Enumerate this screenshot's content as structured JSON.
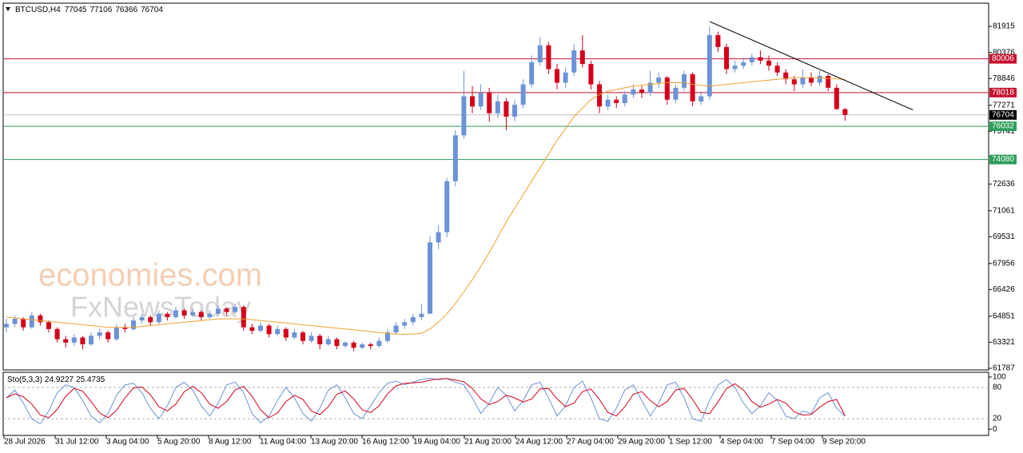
{
  "chart_data": {
    "type": "candlestick",
    "symbol": "BTCUSD,H4",
    "up_color": "#6b93d6",
    "down_color": "#d4001a",
    "candles": [
      [
        64200,
        64700,
        63900,
        64400
      ],
      [
        64400,
        64900,
        64200,
        64700
      ],
      [
        64700,
        64800,
        64000,
        64200
      ],
      [
        64200,
        65100,
        64100,
        64900
      ],
      [
        64900,
        65000,
        64300,
        64500
      ],
      [
        64500,
        64600,
        63900,
        64100
      ],
      [
        64100,
        64200,
        63300,
        63500
      ],
      [
        63500,
        63700,
        63000,
        63300
      ],
      [
        63300,
        63800,
        63100,
        63600
      ],
      [
        63600,
        63700,
        62900,
        63200
      ],
      [
        63200,
        63900,
        63100,
        63700
      ],
      [
        63700,
        64100,
        63500,
        63900
      ],
      [
        63900,
        64000,
        63300,
        63500
      ],
      [
        63500,
        64400,
        63400,
        64200
      ],
      [
        64200,
        64400,
        63900,
        64100
      ],
      [
        64100,
        64800,
        64000,
        64600
      ],
      [
        64600,
        65000,
        64400,
        64800
      ],
      [
        64800,
        64900,
        64300,
        64500
      ],
      [
        64500,
        65200,
        64400,
        65000
      ],
      [
        65000,
        65100,
        64600,
        64800
      ],
      [
        64800,
        65400,
        64700,
        65200
      ],
      [
        65200,
        65300,
        64700,
        64900
      ],
      [
        64900,
        65300,
        64800,
        65100
      ],
      [
        65100,
        65200,
        64600,
        64800
      ],
      [
        64800,
        65200,
        64700,
        65000
      ],
      [
        65000,
        65500,
        64900,
        65300
      ],
      [
        65300,
        65400,
        64900,
        65100
      ],
      [
        65100,
        65600,
        65000,
        65400
      ],
      [
        65400,
        65500,
        64000,
        64200
      ],
      [
        64200,
        64400,
        63800,
        64000
      ],
      [
        64000,
        64500,
        63900,
        64300
      ],
      [
        64300,
        64400,
        63600,
        63800
      ],
      [
        63800,
        64300,
        63700,
        64100
      ],
      [
        64100,
        64200,
        63400,
        63600
      ],
      [
        63600,
        64100,
        63500,
        63900
      ],
      [
        63900,
        64000,
        63200,
        63400
      ],
      [
        63400,
        63900,
        63300,
        63700
      ],
      [
        63700,
        63800,
        62900,
        63200
      ],
      [
        63200,
        63700,
        63100,
        63500
      ],
      [
        63500,
        63600,
        62900,
        63100
      ],
      [
        63100,
        63400,
        63000,
        63300
      ],
      [
        63300,
        63400,
        62800,
        63000
      ],
      [
        63000,
        63300,
        62900,
        63200
      ],
      [
        63200,
        63300,
        62900,
        63100
      ],
      [
        63100,
        63600,
        63000,
        63400
      ],
      [
        63400,
        64100,
        63300,
        63900
      ],
      [
        63900,
        64500,
        63800,
        64300
      ],
      [
        64300,
        64700,
        64100,
        64500
      ],
      [
        64500,
        65000,
        64300,
        64800
      ],
      [
        64800,
        65600,
        64600,
        65000
      ],
      [
        65000,
        69600,
        65000,
        69200
      ],
      [
        69200,
        70200,
        68800,
        69800
      ],
      [
        69800,
        73000,
        69500,
        72800
      ],
      [
        72800,
        75800,
        72500,
        75500
      ],
      [
        75500,
        79300,
        75300,
        77800
      ],
      [
        77800,
        78400,
        76800,
        77200
      ],
      [
        77200,
        78500,
        77000,
        78000
      ],
      [
        78000,
        78300,
        76300,
        76800
      ],
      [
        76800,
        77900,
        76500,
        77500
      ],
      [
        77500,
        77700,
        75800,
        76600
      ],
      [
        76600,
        77600,
        76300,
        77300
      ],
      [
        77300,
        78800,
        77100,
        78500
      ],
      [
        78500,
        80200,
        78300,
        79800
      ],
      [
        79800,
        81300,
        79600,
        80800
      ],
      [
        80800,
        81000,
        79100,
        79400
      ],
      [
        79400,
        79700,
        78200,
        78600
      ],
      [
        78600,
        79500,
        78300,
        79200
      ],
      [
        79200,
        80900,
        79000,
        80500
      ],
      [
        80500,
        81400,
        79500,
        79700
      ],
      [
        79700,
        79900,
        78200,
        78500
      ],
      [
        78500,
        78700,
        76800,
        77200
      ],
      [
        77200,
        77900,
        77000,
        77600
      ],
      [
        77600,
        77800,
        77100,
        77400
      ],
      [
        77400,
        78100,
        77200,
        77900
      ],
      [
        77900,
        78500,
        77700,
        78200
      ],
      [
        78200,
        78400,
        77700,
        78000
      ],
      [
        78000,
        79300,
        77800,
        78600
      ],
      [
        78600,
        79200,
        78300,
        78900
      ],
      [
        78900,
        79000,
        77300,
        77600
      ],
      [
        77600,
        78500,
        77400,
        78300
      ],
      [
        78300,
        79300,
        78100,
        79100
      ],
      [
        79100,
        79200,
        77200,
        77500
      ],
      [
        77500,
        78100,
        77300,
        77800
      ],
      [
        77800,
        81900,
        77600,
        81400
      ],
      [
        81400,
        81600,
        80400,
        80700
      ],
      [
        80700,
        80900,
        79100,
        79400
      ],
      [
        79400,
        79900,
        79200,
        79600
      ],
      [
        79600,
        80100,
        79400,
        79800
      ],
      [
        79800,
        80300,
        79600,
        80100
      ],
      [
        80100,
        80500,
        79700,
        79900
      ],
      [
        79900,
        80200,
        79300,
        79600
      ],
      [
        79600,
        79800,
        79000,
        79200
      ],
      [
        79200,
        79400,
        78500,
        78800
      ],
      [
        78800,
        79000,
        78100,
        78500
      ],
      [
        78500,
        79400,
        78300,
        78900
      ],
      [
        78900,
        79200,
        78400,
        78600
      ],
      [
        78600,
        79300,
        78400,
        79000
      ],
      [
        79000,
        79100,
        78100,
        78300
      ],
      [
        78300,
        78500,
        77000,
        77045
      ],
      [
        77045,
        77106,
        76366,
        76704
      ]
    ],
    "ma": {
      "color": "#f0a030",
      "values": [
        64800,
        64750,
        64700,
        64650,
        64600,
        64550,
        64500,
        64450,
        64400,
        64350,
        64300,
        64250,
        64200,
        64200,
        64200,
        64200,
        64250,
        64300,
        64350,
        64400,
        64450,
        64500,
        64550,
        64600,
        64650,
        64700,
        64700,
        64700,
        64700,
        64650,
        64600,
        64550,
        64500,
        64450,
        64400,
        64350,
        64300,
        64250,
        64200,
        64150,
        64100,
        64050,
        64000,
        63950,
        63900,
        63850,
        63800,
        63800,
        63800,
        63850,
        64100,
        64500,
        65000,
        65600,
        66300,
        67000,
        67800,
        68600,
        69500,
        70400,
        71200,
        72000,
        72800,
        73600,
        74400,
        75200,
        75900,
        76600,
        77100,
        77600,
        77900,
        78100,
        78200,
        78300,
        78400,
        78450,
        78500,
        78550,
        78600,
        78600,
        78600,
        78500,
        78450,
        78400,
        78450,
        78500,
        78550,
        78600,
        78650,
        78700,
        78750,
        78800,
        78850,
        78900,
        78900,
        78900,
        78880,
        78850,
        78820,
        78800
      ]
    },
    "levels": [
      {
        "value": 80006,
        "color": "#c8102e"
      },
      {
        "value": 78018,
        "color": "#c8102e"
      },
      {
        "value": 76032,
        "color": "#2e9e5b"
      },
      {
        "value": 74080,
        "color": "#2e9e5b"
      }
    ],
    "trendline": {
      "x": [
        83,
        107
      ],
      "y": [
        82200,
        77000
      ]
    },
    "ylim": [
      61693,
      83279
    ],
    "yticks": [
      81915,
      80376,
      78846,
      77271,
      75741,
      72636,
      71061,
      69531,
      67956,
      66426,
      64851,
      63321,
      61787
    ],
    "xlabels": [
      "28 Jul 2026",
      "31 Jul 12:00",
      "3 Aug 04:00",
      "5 Aug 20:00",
      "8 Aug 12:00",
      "11 Aug 04:00",
      "13 Aug 20:00",
      "16 Aug 12:00",
      "19 Aug 04:00",
      "21 Aug 20:00",
      "24 Aug 12:00",
      "27 Aug 04:00",
      "29 Aug 20:00",
      "1 Sep 12:00",
      "4 Sep 04:00",
      "7 Sep 04:00",
      "9 Sep 20:00"
    ],
    "watermark": [
      "economies.com",
      "FxNewsToday"
    ],
    "stochastic": {
      "label": "Sto(5,3,3)",
      "ylim": [
        -12,
        109
      ],
      "yticks": [
        0,
        20,
        80,
        100
      ],
      "main": {
        "color": "#6b93d6",
        "values": [
          60,
          75,
          50,
          20,
          10,
          35,
          70,
          85,
          80,
          55,
          25,
          12,
          30,
          65,
          85,
          88,
          70,
          40,
          20,
          45,
          80,
          90,
          75,
          45,
          25,
          50,
          85,
          90,
          70,
          30,
          12,
          25,
          55,
          80,
          60,
          30,
          15,
          40,
          75,
          85,
          60,
          30,
          20,
          45,
          70,
          88,
          92,
          85,
          90,
          95,
          98,
          95,
          97,
          90,
          85,
          60,
          30,
          50,
          80,
          65,
          35,
          55,
          85,
          90,
          60,
          25,
          45,
          80,
          92,
          60,
          20,
          15,
          40,
          75,
          85,
          55,
          25,
          50,
          85,
          90,
          60,
          20,
          15,
          55,
          85,
          95,
          80,
          50,
          30,
          45,
          70,
          55,
          25,
          20,
          35,
          30,
          60,
          70,
          40,
          24.9227
        ]
      },
      "signal": {
        "color": "#d4001a",
        "values": [
          60,
          68,
          62,
          48,
          27,
          22,
          38,
          63,
          78,
          73,
          53,
          31,
          22,
          36,
          60,
          79,
          81,
          66,
          43,
          35,
          48,
          72,
          82,
          70,
          48,
          40,
          53,
          75,
          82,
          63,
          37,
          22,
          31,
          53,
          65,
          57,
          35,
          28,
          43,
          67,
          73,
          58,
          37,
          32,
          45,
          68,
          83,
          88,
          89,
          90,
          94,
          96,
          97,
          94,
          91,
          78,
          58,
          47,
          53,
          65,
          60,
          52,
          58,
          77,
          78,
          58,
          43,
          50,
          72,
          77,
          57,
          32,
          25,
          43,
          67,
          72,
          55,
          43,
          53,
          75,
          78,
          57,
          32,
          30,
          52,
          78,
          87,
          75,
          53,
          42,
          48,
          57,
          50,
          33,
          27,
          28,
          42,
          53,
          57,
          25.4735
        ]
      }
    }
  }
}
